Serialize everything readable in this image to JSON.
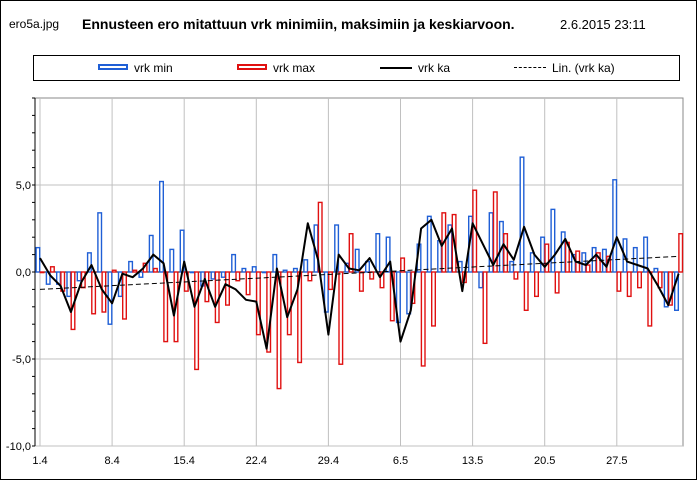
{
  "header": {
    "filename": "ero5a.jpg",
    "title": "Ennusteen ero mitattuun vrk minimiin, maksimiin  ja keskiarvoon.",
    "timestamp": "2.6.2015  23:11"
  },
  "colors": {
    "min": "#1f5fd6",
    "max": "#e01010",
    "avg": "#000000",
    "trend": "#000000"
  },
  "chart_data": {
    "type": "bar",
    "title": "Ennusteen ero mitattuun vrk minimiin, maksimiin  ja keskiarvoon.",
    "ylim": [
      -10,
      10
    ],
    "y_ticks": [
      "5,0",
      "0,0",
      "-5,0",
      "-10,0"
    ],
    "y_tick_values": [
      5,
      0,
      -5,
      -10
    ],
    "x_ticks": [
      "1.4",
      "8.4",
      "15.4",
      "22.4",
      "29.4",
      "6.5",
      "13.5",
      "20.5",
      "27.5"
    ],
    "x_tick_days": [
      0,
      7,
      14,
      21,
      28,
      35,
      42,
      49,
      56
    ],
    "grid": true,
    "legend_position": "top",
    "series": [
      {
        "name": "vrk min",
        "kind": "bar",
        "values": [
          1.4,
          -0.7,
          -0.7,
          -1.4,
          -0.5,
          1.1,
          3.4,
          -3.0,
          -1.4,
          0.6,
          -0.3,
          2.1,
          5.2,
          1.3,
          2.4,
          0.0,
          -0.8,
          -0.4,
          -0.3,
          1.0,
          0.2,
          0.3,
          0.0,
          1.0,
          0.1,
          0.2,
          0.7,
          2.7,
          -2.3,
          2.7,
          0.5,
          1.3,
          0.6,
          2.2,
          2.0,
          -2.9,
          -2.4,
          1.6,
          3.2,
          1.8,
          2.7,
          0.6,
          3.2,
          -0.9,
          3.4,
          2.9,
          0.6,
          6.6,
          1.1,
          2.0,
          3.6,
          2.3,
          1.0,
          1.1,
          1.4,
          1.3,
          5.3,
          1.9,
          1.4,
          2.0,
          0.2,
          -2.0,
          -2.2
        ]
      },
      {
        "name": "vrk max",
        "kind": "bar",
        "values": [
          0.0,
          0.3,
          -1.1,
          -3.3,
          -0.9,
          -2.4,
          -2.3,
          0.1,
          -2.7,
          0.1,
          0.5,
          0.2,
          -4.0,
          -4.0,
          -1.1,
          -5.6,
          -1.7,
          -2.9,
          -1.9,
          -0.5,
          -1.3,
          -3.6,
          -4.6,
          -6.7,
          -3.6,
          -5.2,
          -0.5,
          4.0,
          -1.0,
          -5.3,
          2.2,
          -1.1,
          -0.4,
          -0.9,
          -2.8,
          0.8,
          -1.8,
          -5.4,
          -3.1,
          3.4,
          3.3,
          -0.6,
          4.7,
          -4.1,
          4.6,
          2.2,
          -0.4,
          -2.2,
          -1.4,
          1.6,
          -1.2,
          1.7,
          1.2,
          0.4,
          1.1,
          0.9,
          -1.1,
          -1.4,
          -0.9,
          -3.1,
          -0.9,
          -1.9,
          2.2
        ]
      },
      {
        "name": "vrk ka",
        "kind": "line",
        "values": [
          0.8,
          -0.2,
          -0.8,
          -2.3,
          -0.6,
          0.4,
          -1.0,
          -1.8,
          -0.1,
          -0.3,
          0.2,
          1.0,
          0.5,
          -2.5,
          0.6,
          -2.0,
          -0.4,
          -2.0,
          -0.7,
          -1.0,
          -1.6,
          -1.7,
          -4.4,
          0.2,
          -2.6,
          -1.0,
          2.8,
          0.7,
          -3.6,
          1.0,
          0.2,
          0.1,
          0.8,
          -0.3,
          0.6,
          -4.0,
          -2.2,
          2.5,
          3.0,
          1.5,
          2.5,
          -1.1,
          2.8,
          1.6,
          0.4,
          1.6,
          0.7,
          2.6,
          1.0,
          0.3,
          1.0,
          1.9,
          0.6,
          0.4,
          1.0,
          0.3,
          2.0,
          0.6,
          0.4,
          0.2,
          -0.8,
          -1.9,
          -0.1
        ]
      },
      {
        "name": "Lin. (vrk ka)",
        "kind": "trendline",
        "values": [
          -1.0,
          0.9
        ]
      }
    ]
  }
}
